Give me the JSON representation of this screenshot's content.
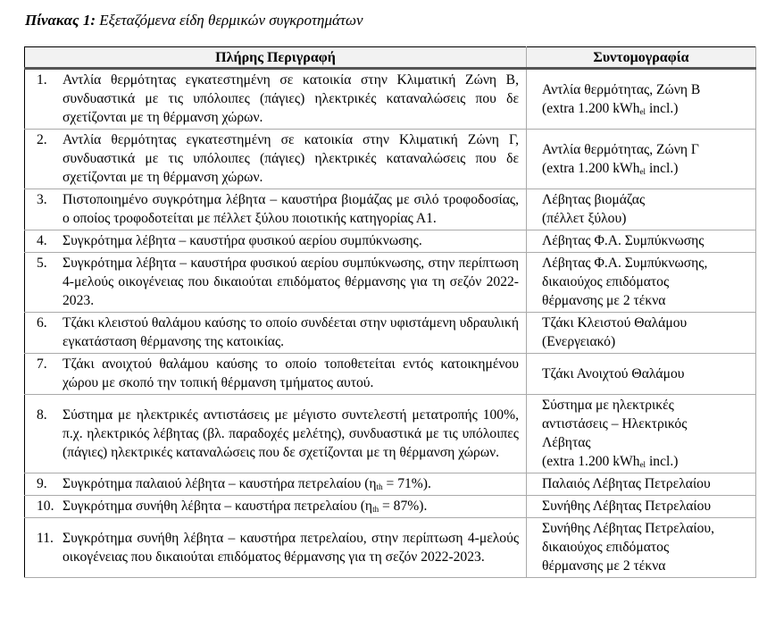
{
  "caption": {
    "label": "Πίνακας 1:",
    "title": "Εξεταζόμενα είδη θερμικών συγκροτημάτων"
  },
  "headers": {
    "description": "Πλήρης Περιγραφή",
    "abbreviation": "Συντομογραφία"
  },
  "rows": [
    {
      "num": "1.",
      "desc": [
        {
          "t": "Αντλία θερμότητας εγκατεστημένη σε κατοικία στην Κλιματική Ζώνη Β, συνδυαστικά με τις υπόλοιπες (πάγιες) ηλεκτρικές καταναλώσεις που δε σχετίζονται με τη θέρμανση χώρων."
        }
      ],
      "abbr": [
        [
          {
            "t": "Αντλία θερμότητας, Ζώνη Β"
          }
        ],
        [
          {
            "t": "(extra 1.200 kWh"
          },
          {
            "sub": "el"
          },
          {
            "t": " incl.)"
          }
        ]
      ]
    },
    {
      "num": "2.",
      "desc": [
        {
          "t": "Αντλία θερμότητας εγκατεστημένη σε κατοικία στην Κλιματική Ζώνη Γ, συνδυαστικά με τις υπόλοιπες (πάγιες) ηλεκτρικές καταναλώσεις που δε σχετίζονται με τη θέρμανση χώρων."
        }
      ],
      "abbr": [
        [
          {
            "t": "Αντλία θερμότητας, Ζώνη Γ"
          }
        ],
        [
          {
            "t": "(extra 1.200 kWh"
          },
          {
            "sub": "el"
          },
          {
            "t": " incl.)"
          }
        ]
      ]
    },
    {
      "num": "3.",
      "desc": [
        {
          "t": "Πιστοποιημένο συγκρότημα λέβητα – καυστήρα βιομάζας με σιλό τροφοδοσίας, ο οποίος τροφοδοτείται με πέλλετ ξύλου ποιοτικής κατηγορίας Α1."
        }
      ],
      "abbr": [
        [
          {
            "t": "Λέβητας βιομάζας"
          }
        ],
        [
          {
            "t": "(πέλλετ ξύλου)"
          }
        ]
      ]
    },
    {
      "num": "4.",
      "desc": [
        {
          "t": "Συγκρότημα λέβητα – καυστήρα φυσικού αερίου συμπύκνωσης."
        }
      ],
      "abbr": [
        [
          {
            "t": "Λέβητας Φ.Α. Συμπύκνωσης"
          }
        ]
      ]
    },
    {
      "num": "5.",
      "desc": [
        {
          "t": "Συγκρότημα λέβητα – καυστήρα φυσικού αερίου συμπύκνωσης, στην περίπτωση 4-μελούς οικογένειας που δικαιούται επιδόματος θέρμανσης για τη σεζόν 2022-2023."
        }
      ],
      "abbr": [
        [
          {
            "t": "Λέβητας Φ.Α. Συμπύκνωσης,"
          }
        ],
        [
          {
            "t": "δικαιούχος επιδόματος"
          }
        ],
        [
          {
            "t": "θέρμανσης με 2 τέκνα"
          }
        ]
      ]
    },
    {
      "num": "6.",
      "desc": [
        {
          "t": "Τζάκι κλειστού θαλάμου καύσης το οποίο συνδέεται στην υφιστάμενη υδραυλική εγκατάσταση θέρμανσης της κατοικίας."
        }
      ],
      "abbr": [
        [
          {
            "t": "Τζάκι Κλειστού Θαλάμου"
          }
        ],
        [
          {
            "t": "(Ενεργειακό)"
          }
        ]
      ]
    },
    {
      "num": "7.",
      "desc": [
        {
          "t": "Τζάκι ανοιχτού θαλάμου καύσης το οποίο τοποθετείται εντός κατοικημένου χώρου με σκοπό την τοπική θέρμανση τμήματος αυτού."
        }
      ],
      "abbr": [
        [
          {
            "t": "Τζάκι Ανοιχτού Θαλάμου"
          }
        ]
      ]
    },
    {
      "num": "8.",
      "desc": [
        {
          "t": "Σύστημα με ηλεκτρικές αντιστάσεις με μέγιστο συντελεστή μετατροπής 100%, π.χ. ηλεκτρικός λέβητας (βλ. παραδοχές μελέτης), συνδυαστικά με τις υπόλοιπες (πάγιες) ηλεκτρικές καταναλώσεις που δε σχετίζονται με τη θέρμανση χώρων."
        }
      ],
      "abbr": [
        [
          {
            "t": "Σύστημα με ηλεκτρικές"
          }
        ],
        [
          {
            "t": "αντιστάσεις – Ηλεκτρικός"
          }
        ],
        [
          {
            "t": "Λέβητας"
          }
        ],
        [
          {
            "t": "(extra 1.200 kWh"
          },
          {
            "sub": "el"
          },
          {
            "t": " incl.)"
          }
        ]
      ]
    },
    {
      "num": "9.",
      "desc": [
        {
          "t": "Συγκρότημα παλαιού λέβητα – καυστήρα πετρελαίου (η"
        },
        {
          "sub": "th"
        },
        {
          "t": " = 71%)."
        }
      ],
      "abbr": [
        [
          {
            "t": "Παλαιός Λέβητας Πετρελαίου"
          }
        ]
      ]
    },
    {
      "num": "10.",
      "desc": [
        {
          "t": "Συγκρότημα συνήθη λέβητα  –  καυστήρα πετρελαίου (η"
        },
        {
          "sub": "th"
        },
        {
          "t": " = 87%)."
        }
      ],
      "abbr": [
        [
          {
            "t": "Συνήθης Λέβητας Πετρελαίου"
          }
        ]
      ]
    },
    {
      "num": "11.",
      "desc": [
        {
          "t": "Συγκρότημα συνήθη λέβητα – καυστήρα πετρελαίου, στην περίπτωση 4-μελούς οικογένειας που δικαιούται επιδόματος θέρμανσης για τη σεζόν 2022-2023."
        }
      ],
      "abbr": [
        [
          {
            "t": "Συνήθης Λέβητας Πετρελαίου,"
          }
        ],
        [
          {
            "t": "δικαιούχος επιδόματος"
          }
        ],
        [
          {
            "t": "θέρμανσης με 2 τέκνα"
          }
        ]
      ]
    }
  ]
}
